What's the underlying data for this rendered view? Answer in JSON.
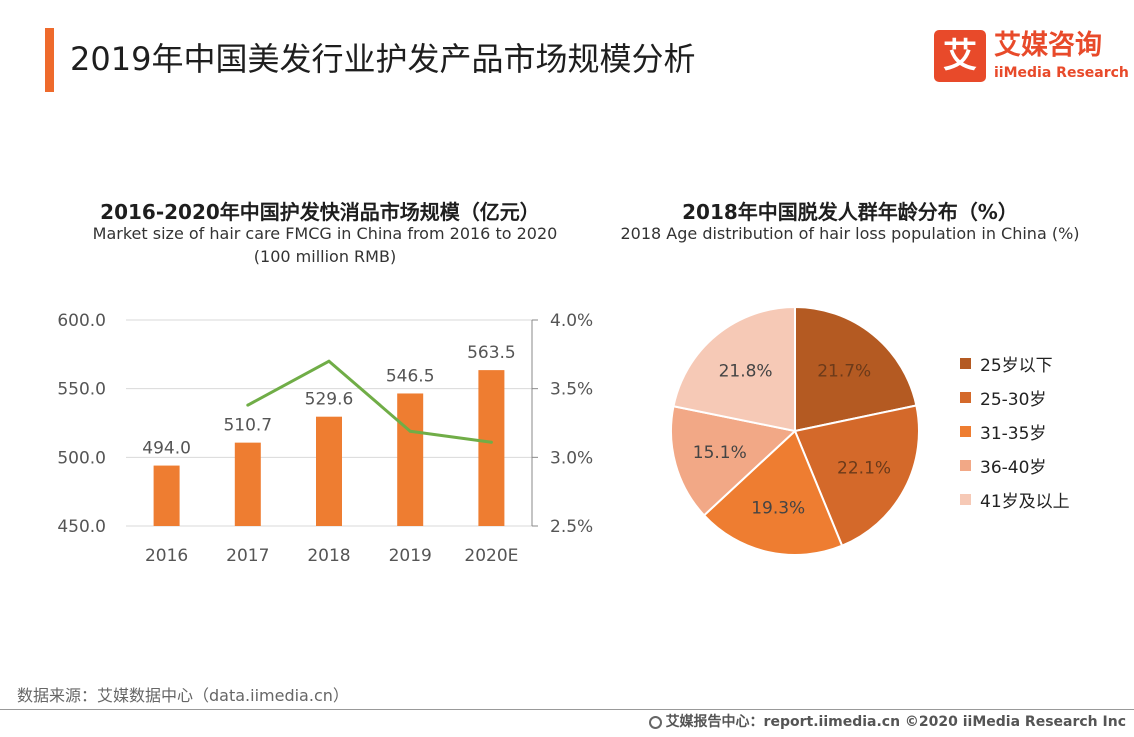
{
  "page": {
    "title": "2019年中国美发行业护发产品市场规模分析"
  },
  "logo": {
    "mark": "艾",
    "cn": "艾媒咨询",
    "en": "iiMedia Research"
  },
  "source": "数据来源：艾媒数据中心（data.iimedia.cn）",
  "footer": "艾媒报告中心：report.iimedia.cn  ©2020  iiMedia Research  Inc",
  "colors": {
    "accent": "#ee6a2c",
    "bar": "#ee7d31",
    "line": "#70ad47",
    "grid": "#d9d9d9"
  },
  "chart_data": [
    {
      "type": "bar",
      "title": "2016-2020年中国护发快消品市场规模（亿元）",
      "subtitle_lines": [
        "Market size of hair care FMCG in China from 2016 to 2020",
        "(100 million RMB)"
      ],
      "categories": [
        "2016",
        "2017",
        "2018",
        "2019",
        "2020E"
      ],
      "series": [
        {
          "name": "",
          "kind": "bar",
          "axis": "left",
          "values": [
            494.0,
            510.7,
            529.6,
            546.5,
            563.5
          ]
        },
        {
          "name": "",
          "kind": "line",
          "axis": "right",
          "values": [
            null,
            3.38,
            3.7,
            3.19,
            3.11
          ]
        }
      ],
      "ylim_left": [
        450,
        600
      ],
      "yticks_left": [
        "450.0",
        "500.0",
        "550.0",
        "600.0"
      ],
      "ylim_right": [
        2.5,
        4.0
      ],
      "yticks_right": [
        "2.5%",
        "3.0%",
        "3.5%",
        "4.0%"
      ],
      "data_labels": [
        "494.0",
        "510.7",
        "529.6",
        "546.5",
        "563.5"
      ],
      "grid": true
    },
    {
      "type": "pie",
      "title": "2018年中国脱发人群年龄分布（%）",
      "subtitle_lines": [
        "2018 Age distribution of hair loss population in China (%)"
      ],
      "slices": [
        {
          "label": "25岁以下",
          "value": 21.7,
          "text": "21.7%",
          "color": "#b45a22"
        },
        {
          "label": "25-30岁",
          "value": 22.1,
          "text": "22.1%",
          "color": "#d4692a"
        },
        {
          "label": "31-35岁",
          "value": 19.3,
          "text": "19.3%",
          "color": "#ee7d31"
        },
        {
          "label": "36-40岁",
          "value": 15.1,
          "text": "15.1%",
          "color": "#f2a886"
        },
        {
          "label": "41岁及以上",
          "value": 21.8,
          "text": "21.8%",
          "color": "#f6c9b6"
        }
      ],
      "legend_position": "right"
    }
  ]
}
